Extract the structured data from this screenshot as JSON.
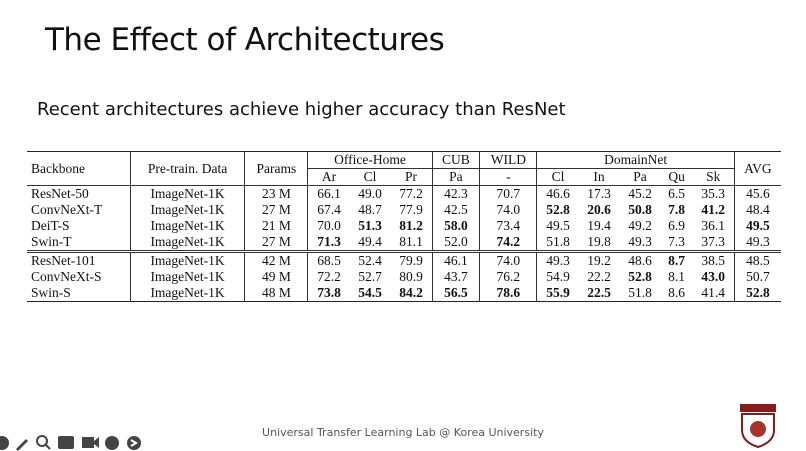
{
  "header": {
    "title": "The Effect of Architectures",
    "subtitle": "Recent architectures achieve higher accuracy than ResNet"
  },
  "table": {
    "head_top": [
      "Backbone",
      "Pre-train. Data",
      "Params",
      "Office-Home",
      "CUB",
      "WILD",
      "DomainNet",
      "AVG"
    ],
    "head_sub": [
      "Ar",
      "Cl",
      "Pr",
      "Pa",
      "-",
      "Cl",
      "In",
      "Pa",
      "Qu",
      "Sk"
    ],
    "groups": [
      {
        "rows": [
          {
            "cells": [
              "ResNet-50",
              "ImageNet-1K",
              "23 M",
              "66.1",
              "49.0",
              "77.2",
              "42.3",
              "70.7",
              "46.6",
              "17.3",
              "45.2",
              "6.5",
              "35.3",
              "45.6"
            ],
            "bold": []
          },
          {
            "cells": [
              "ConvNeXt-T",
              "ImageNet-1K",
              "27 M",
              "67.4",
              "48.7",
              "77.9",
              "42.5",
              "74.0",
              "52.8",
              "20.6",
              "50.8",
              "7.8",
              "41.2",
              "48.4"
            ],
            "bold": [
              8,
              9,
              10,
              11,
              12
            ]
          },
          {
            "cells": [
              "DeiT-S",
              "ImageNet-1K",
              "21 M",
              "70.0",
              "51.3",
              "81.2",
              "58.0",
              "73.4",
              "49.5",
              "19.4",
              "49.2",
              "6.9",
              "36.1",
              "49.5"
            ],
            "bold": [
              4,
              5,
              6,
              13
            ]
          },
          {
            "cells": [
              "Swin-T",
              "ImageNet-1K",
              "27 M",
              "71.3",
              "49.4",
              "81.1",
              "52.0",
              "74.2",
              "51.8",
              "19.8",
              "49.3",
              "7.3",
              "37.3",
              "49.3"
            ],
            "bold": [
              3,
              7
            ]
          }
        ]
      },
      {
        "rows": [
          {
            "cells": [
              "ResNet-101",
              "ImageNet-1K",
              "42 M",
              "68.5",
              "52.4",
              "79.9",
              "46.1",
              "74.0",
              "49.3",
              "19.2",
              "48.6",
              "8.7",
              "38.5",
              "48.5"
            ],
            "bold": [
              11
            ]
          },
          {
            "cells": [
              "ConvNeXt-S",
              "ImageNet-1K",
              "49 M",
              "72.2",
              "52.7",
              "80.9",
              "43.7",
              "76.2",
              "54.9",
              "22.2",
              "52.8",
              "8.1",
              "43.0",
              "50.7"
            ],
            "bold": [
              10,
              12
            ]
          },
          {
            "cells": [
              "Swin-S",
              "ImageNet-1K",
              "48 M",
              "73.8",
              "54.5",
              "84.2",
              "56.5",
              "78.6",
              "55.9",
              "22.5",
              "51.8",
              "8.6",
              "41.4",
              "52.8"
            ],
            "bold": [
              3,
              4,
              5,
              6,
              7,
              8,
              9,
              13
            ]
          }
        ]
      }
    ]
  },
  "footer": {
    "text": "Universal Transfer Learning Lab @ Korea University"
  }
}
